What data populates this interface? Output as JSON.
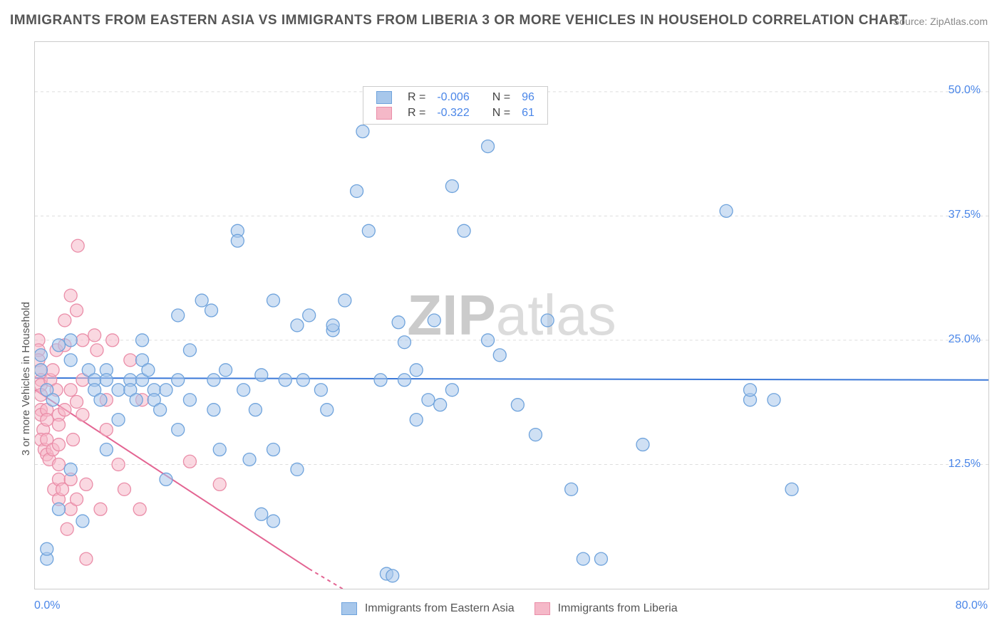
{
  "title": "IMMIGRANTS FROM EASTERN ASIA VS IMMIGRANTS FROM LIBERIA 3 OR MORE VEHICLES IN HOUSEHOLD CORRELATION CHART",
  "source": "Source: ZipAtlas.com",
  "ylabel": "3 or more Vehicles in Household",
  "watermark_a": "ZIP",
  "watermark_b": "atlas",
  "chart": {
    "type": "scatter",
    "xlim": [
      0,
      80
    ],
    "ylim": [
      0,
      55
    ],
    "xtick_start": "0.0%",
    "xtick_end": "80.0%",
    "yticks": [
      12.5,
      25.0,
      37.5,
      50.0
    ],
    "ytick_labels": [
      "12.5%",
      "25.0%",
      "37.5%",
      "50.0%"
    ],
    "grid_color": "#dddddd",
    "border_color": "#cccccc",
    "background_color": "#ffffff",
    "marker_radius": 9,
    "marker_opacity": 0.55,
    "line_width": 2,
    "series": [
      {
        "name": "Immigrants from Eastern Asia",
        "color_fill": "#a7c7eb",
        "color_stroke": "#6fa3dc",
        "line_color": "#3b78d8",
        "R": "-0.006",
        "N": "96",
        "trend": {
          "x1": 0,
          "y1": 21.2,
          "x2": 80,
          "y2": 21.0
        },
        "points": [
          [
            0.5,
            23.5
          ],
          [
            0.5,
            22
          ],
          [
            1,
            20
          ],
          [
            1.5,
            19
          ],
          [
            1,
            3
          ],
          [
            1,
            4
          ],
          [
            2,
            24.5
          ],
          [
            2,
            8
          ],
          [
            3,
            25
          ],
          [
            3,
            23
          ],
          [
            3,
            12
          ],
          [
            4,
            6.8
          ],
          [
            4.5,
            22
          ],
          [
            5,
            21
          ],
          [
            5,
            20
          ],
          [
            5.5,
            19
          ],
          [
            6,
            22
          ],
          [
            6,
            21
          ],
          [
            6,
            14
          ],
          [
            7,
            17
          ],
          [
            7,
            20
          ],
          [
            8,
            21
          ],
          [
            8,
            20
          ],
          [
            8.5,
            19
          ],
          [
            9,
            25
          ],
          [
            9,
            21
          ],
          [
            9,
            23
          ],
          [
            9.5,
            22
          ],
          [
            10,
            20
          ],
          [
            10,
            19
          ],
          [
            10.5,
            18
          ],
          [
            11,
            11
          ],
          [
            11,
            20
          ],
          [
            12,
            21
          ],
          [
            12,
            27.5
          ],
          [
            12,
            16
          ],
          [
            13,
            24
          ],
          [
            13,
            19
          ],
          [
            14,
            29
          ],
          [
            14.8,
            28
          ],
          [
            15,
            21
          ],
          [
            15,
            18
          ],
          [
            15.5,
            14
          ],
          [
            16,
            22
          ],
          [
            17,
            36
          ],
          [
            17,
            35
          ],
          [
            17.5,
            20
          ],
          [
            18,
            13
          ],
          [
            18.5,
            18
          ],
          [
            19,
            21.5
          ],
          [
            19,
            7.5
          ],
          [
            20,
            6.8
          ],
          [
            20,
            29
          ],
          [
            20,
            14
          ],
          [
            21,
            21
          ],
          [
            22,
            26.5
          ],
          [
            22,
            12
          ],
          [
            22.5,
            21
          ],
          [
            23,
            27.5
          ],
          [
            24,
            20
          ],
          [
            24.5,
            18
          ],
          [
            25,
            26
          ],
          [
            25,
            26.5
          ],
          [
            26,
            29
          ],
          [
            27.5,
            46
          ],
          [
            27,
            40
          ],
          [
            28,
            36
          ],
          [
            29,
            21
          ],
          [
            29.5,
            1.5
          ],
          [
            30,
            1.3
          ],
          [
            30.5,
            26.8
          ],
          [
            31,
            24.8
          ],
          [
            31,
            21
          ],
          [
            32,
            22
          ],
          [
            32,
            17
          ],
          [
            33,
            19
          ],
          [
            33.5,
            27
          ],
          [
            34,
            18.5
          ],
          [
            35,
            20
          ],
          [
            35,
            40.5
          ],
          [
            36,
            36
          ],
          [
            38,
            25
          ],
          [
            38,
            44.5
          ],
          [
            39,
            23.5
          ],
          [
            40.5,
            18.5
          ],
          [
            42,
            15.5
          ],
          [
            43,
            27
          ],
          [
            45,
            10
          ],
          [
            46,
            3
          ],
          [
            47.5,
            3
          ],
          [
            51,
            14.5
          ],
          [
            58,
            38
          ],
          [
            60,
            19
          ],
          [
            60,
            20
          ],
          [
            62,
            19
          ],
          [
            63.5,
            10
          ]
        ]
      },
      {
        "name": "Immigrants from Liberia",
        "color_fill": "#f5b8c8",
        "color_stroke": "#ea8da8",
        "line_color": "#e36492",
        "R": "-0.322",
        "N": "61",
        "trend": {
          "x1": 0,
          "y1": 20.0,
          "x2": 23,
          "y2": 2
        },
        "trend_dashed": {
          "x1": 23,
          "y1": 2,
          "x2": 30,
          "y2": -3
        },
        "points": [
          [
            0.3,
            25
          ],
          [
            0.3,
            24
          ],
          [
            0.3,
            23
          ],
          [
            0.5,
            22
          ],
          [
            0.5,
            21
          ],
          [
            0.5,
            20.5
          ],
          [
            0.5,
            19.5
          ],
          [
            0.5,
            18
          ],
          [
            0.5,
            17.5
          ],
          [
            0.7,
            16
          ],
          [
            0.5,
            15
          ],
          [
            0.8,
            14
          ],
          [
            1,
            18
          ],
          [
            1,
            17
          ],
          [
            1,
            15
          ],
          [
            1,
            13.5
          ],
          [
            1.2,
            13
          ],
          [
            1.3,
            21
          ],
          [
            1.5,
            22
          ],
          [
            1.5,
            14
          ],
          [
            1.6,
            10
          ],
          [
            1.8,
            20
          ],
          [
            1.8,
            24
          ],
          [
            2,
            17.5
          ],
          [
            2,
            16.5
          ],
          [
            2,
            14.5
          ],
          [
            2,
            12.5
          ],
          [
            2,
            11
          ],
          [
            2,
            9
          ],
          [
            2.3,
            10
          ],
          [
            2.5,
            18
          ],
          [
            2.5,
            24.5
          ],
          [
            2.5,
            27
          ],
          [
            2.7,
            6
          ],
          [
            3,
            20
          ],
          [
            3,
            11
          ],
          [
            3,
            8
          ],
          [
            3,
            29.5
          ],
          [
            3.2,
            15
          ],
          [
            3.5,
            28
          ],
          [
            3.5,
            18.8
          ],
          [
            3.5,
            9
          ],
          [
            3.6,
            34.5
          ],
          [
            4,
            25
          ],
          [
            4,
            21
          ],
          [
            4,
            17.5
          ],
          [
            4.3,
            10.5
          ],
          [
            4.3,
            3
          ],
          [
            5,
            25.5
          ],
          [
            5.2,
            24
          ],
          [
            5.5,
            8
          ],
          [
            6,
            19
          ],
          [
            6,
            16
          ],
          [
            6.5,
            25
          ],
          [
            7,
            12.5
          ],
          [
            7.5,
            10
          ],
          [
            8,
            23
          ],
          [
            8.8,
            8
          ],
          [
            9,
            19
          ],
          [
            13,
            12.8
          ],
          [
            15.5,
            10.5
          ]
        ]
      }
    ]
  },
  "legend_top": {
    "r_label": "R =",
    "n_label": "N ="
  },
  "colors": {
    "title": "#555555",
    "source": "#888888",
    "tick": "#4a86e8",
    "value_link": "#4a86e8",
    "text_dark": "#444444"
  }
}
